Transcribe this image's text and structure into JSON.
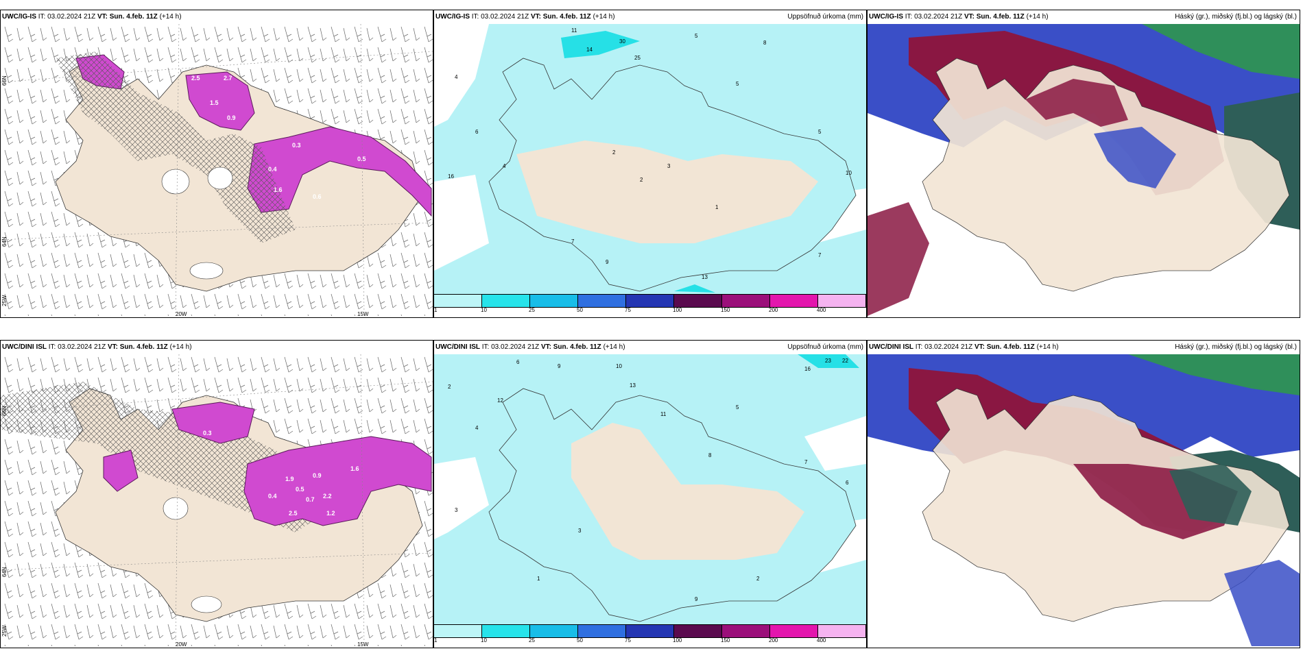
{
  "panels": [
    {
      "model": "UWC/IG-IS",
      "it_label": "IT:",
      "it_value": "03.02.2024 21Z",
      "vt_label": "VT:",
      "vt_value": "Sun. 4.feb. 11Z",
      "lead": "(+14 h)",
      "right": ""
    },
    {
      "model": "UWC/IG-IS",
      "it_label": "IT:",
      "it_value": "03.02.2024 21Z",
      "vt_label": "VT:",
      "vt_value": "Sun. 4.feb. 11Z",
      "lead": "(+14 h)",
      "right": "Uppsöfnuð úrkoma (mm)"
    },
    {
      "model": "UWC/IG-IS",
      "it_label": "IT:",
      "it_value": "03.02.2024 21Z",
      "vt_label": "VT:",
      "vt_value": "Sun. 4.feb. 11Z",
      "lead": "(+14 h)",
      "right": "Háský (gr.), miðský (fj.bl.) og lágský (bl.)"
    },
    {
      "model": "UWC/DINI ISL",
      "it_label": "IT:",
      "it_value": "03.02.2024 21Z",
      "vt_label": "VT:",
      "vt_value": "Sun. 4.feb. 11Z",
      "lead": "(+14 h)",
      "right": ""
    },
    {
      "model": "UWC/DINI ISL",
      "it_label": "IT:",
      "it_value": "03.02.2024 21Z",
      "vt_label": "VT:",
      "vt_value": "Sun. 4.feb. 11Z",
      "lead": "(+14 h)",
      "right": "Uppsöfnuð úrkoma (mm)"
    },
    {
      "model": "UWC/DINI ISL",
      "it_label": "IT:",
      "it_value": "03.02.2024 21Z",
      "vt_label": "VT:",
      "vt_value": "Sun. 4.feb. 11Z",
      "lead": "(+14 h)",
      "right": "Háský (gr.), miðský (fj.bl.) og lágský (bl.)"
    }
  ],
  "axis_labels": {
    "lon_20w": "20W",
    "lon_15w": "15W",
    "lat_66n": "66N",
    "lat_64n": "64N",
    "lat_25w": "25W"
  },
  "legend": {
    "ticks": [
      "1",
      "10",
      "25",
      "50",
      "75",
      "100",
      "150",
      "200",
      "400"
    ],
    "colors": [
      "#bdf5f7",
      "#27e3ea",
      "#18bde8",
      "#2f6fe0",
      "#2436b3",
      "#5a0a4e",
      "#9b0f7a",
      "#e316ad",
      "#f5b3f0"
    ]
  },
  "colors": {
    "land": "#f2e5d5",
    "precip_light": "#b6f2f6",
    "precip_mid": "#26e0e6",
    "snow_purple": "#cc44cc",
    "snow_dark": "#6a2a6a",
    "cloud_high": "#2f8f5a",
    "cloud_mid": "#3a4fc7",
    "cloud_low": "#8a1742",
    "cloud_high_dark": "#2e5e58"
  },
  "precip_labels_top": [
    "11",
    "30",
    "14",
    "25",
    "5",
    "8",
    "6",
    "4",
    "2",
    "1",
    "5",
    "16",
    "5",
    "10",
    "2",
    "3",
    "7",
    "9",
    "13",
    "4",
    "7"
  ],
  "precip_labels_bottom": [
    "6",
    "12",
    "9",
    "10",
    "23",
    "22",
    "16",
    "13",
    "5",
    "2",
    "4",
    "3",
    "8",
    "11",
    "7",
    "9",
    "1",
    "3",
    "2",
    "6"
  ],
  "snow_labels_top": [
    "2.5",
    "2.7",
    "1.5",
    "0.9",
    "0.3",
    "0.4",
    "0.5",
    "1.6",
    "0.6"
  ],
  "snow_labels_bottom": [
    "1.9",
    "0.9",
    "0.5",
    "2.2",
    "1.6",
    "0.4",
    "1.2",
    "2.5",
    "0.7",
    "0.3"
  ]
}
